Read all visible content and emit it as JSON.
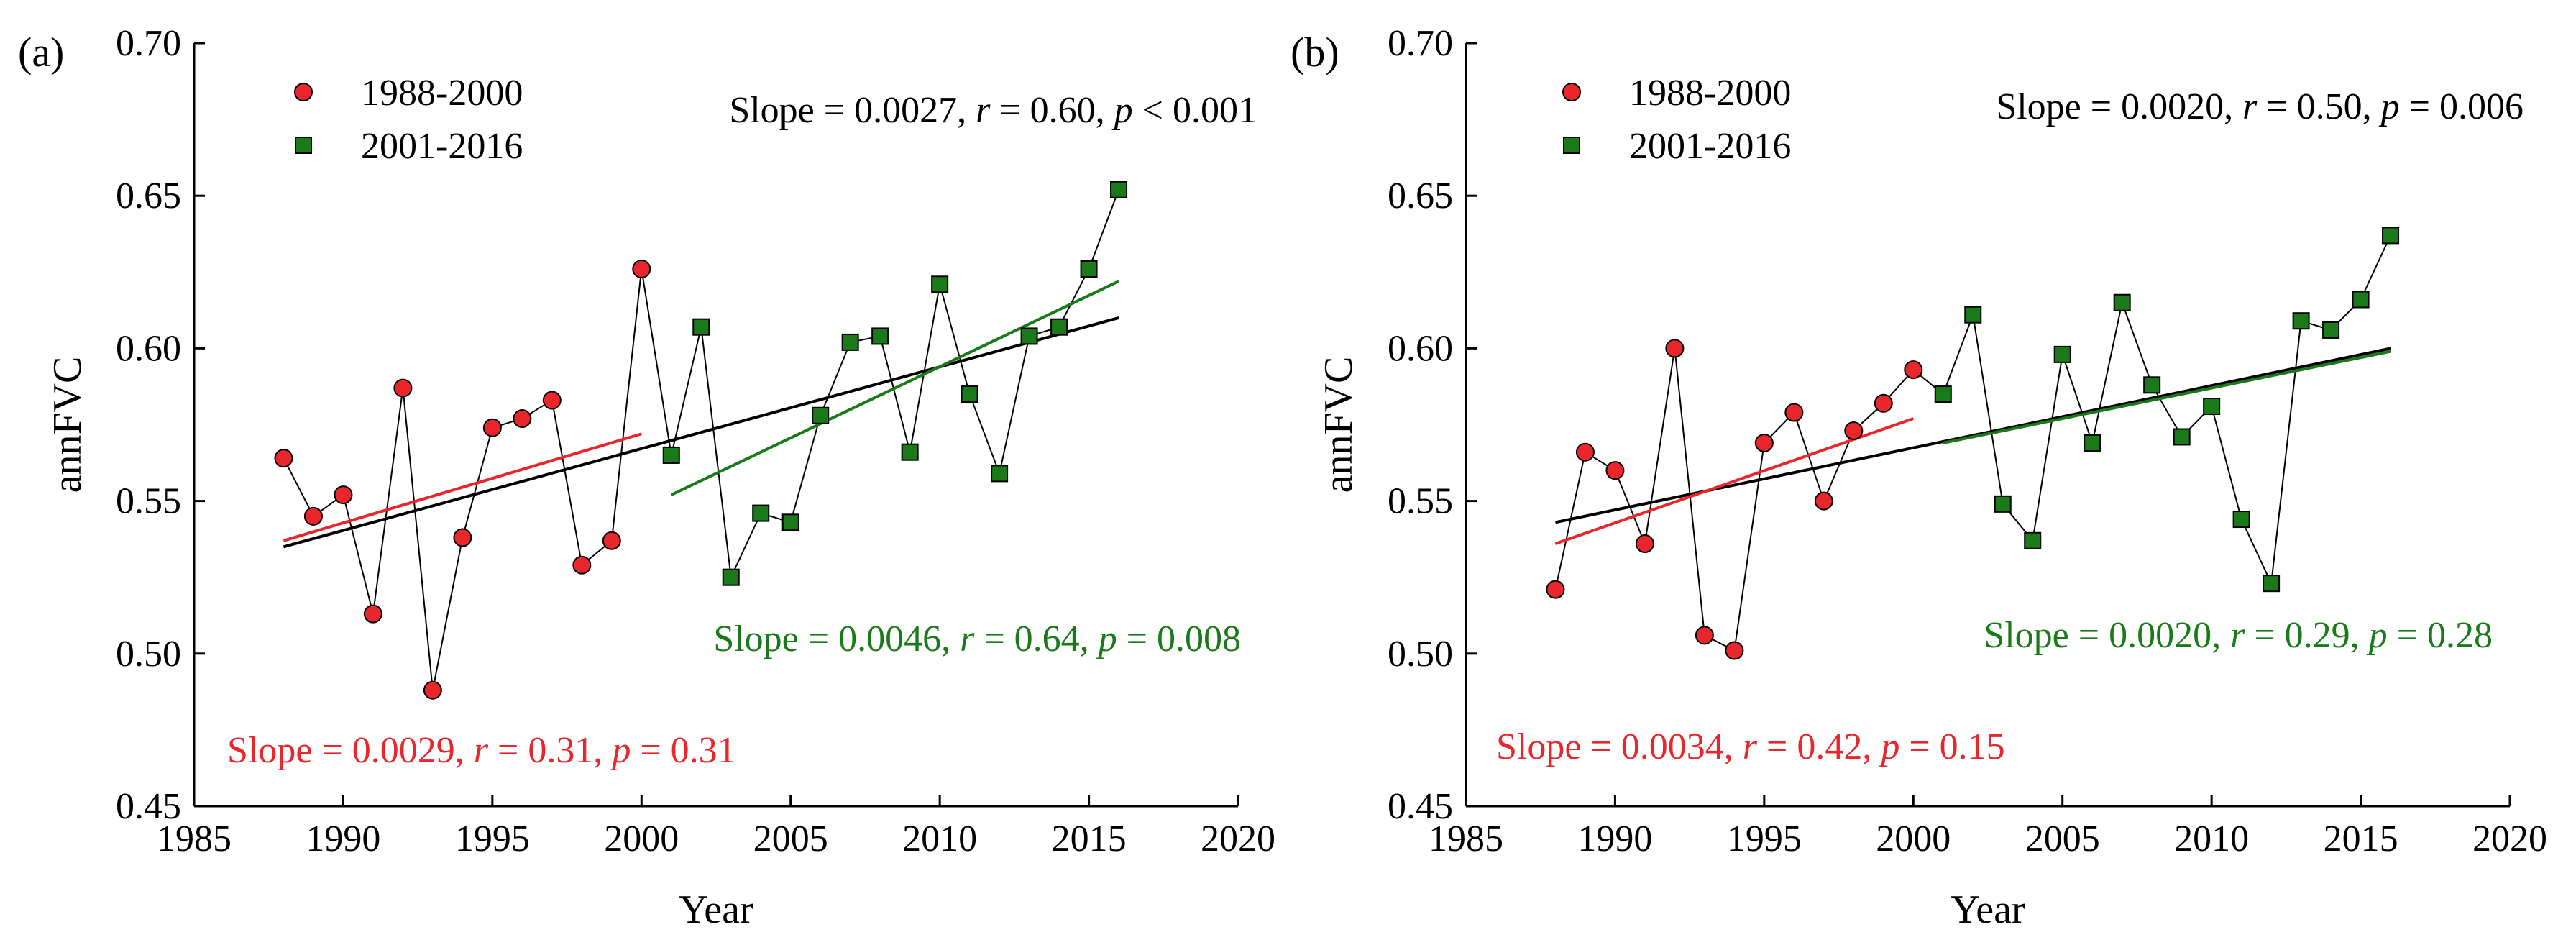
{
  "chart_data": [
    {
      "type": "scatter",
      "panel_label": "(a)",
      "xlabel": "Year",
      "ylabel": "annFVC",
      "xlim": [
        1985,
        2020
      ],
      "ylim": [
        0.45,
        0.7
      ],
      "xticks": [
        1985,
        1990,
        1995,
        2000,
        2005,
        2010,
        2015,
        2020
      ],
      "yticks": [
        0.45,
        0.5,
        0.55,
        0.6,
        0.65,
        0.7
      ],
      "grid": false,
      "legend_position": "top-left",
      "legend": [
        {
          "label": "1988-2000",
          "marker": "circle",
          "color": "#e8262b"
        },
        {
          "label": "2001-2016",
          "marker": "square",
          "color": "#1a7a1a"
        }
      ],
      "series": [
        {
          "name": "1988-2000",
          "color": "#e8262b",
          "x": [
            1988,
            1989,
            1990,
            1991,
            1992,
            1993,
            1994,
            1995,
            1996,
            1997,
            1998,
            1999,
            2000
          ],
          "values": [
            0.564,
            0.545,
            0.552,
            0.513,
            0.587,
            0.488,
            0.538,
            0.574,
            0.577,
            0.583,
            0.529,
            0.537,
            0.626
          ]
        },
        {
          "name": "2001-2016",
          "color": "#1a7a1a",
          "x": [
            2001,
            2002,
            2003,
            2004,
            2005,
            2006,
            2007,
            2008,
            2009,
            2010,
            2011,
            2012,
            2013,
            2014,
            2015,
            2016
          ],
          "values": [
            0.565,
            0.607,
            0.525,
            0.546,
            0.543,
            0.578,
            0.602,
            0.604,
            0.566,
            0.621,
            0.585,
            0.559,
            0.604,
            0.607,
            0.626,
            0.652
          ]
        }
      ],
      "trendlines": [
        {
          "name": "overall",
          "color": "#000000",
          "x": [
            1988,
            2016
          ],
          "y": [
            0.535,
            0.61
          ]
        },
        {
          "name": "1988-2000",
          "color": "#e8262b",
          "x": [
            1988,
            2000
          ],
          "y": [
            0.537,
            0.572
          ]
        },
        {
          "name": "2001-2016",
          "color": "#1a7a1a",
          "x": [
            2001,
            2016
          ],
          "y": [
            0.552,
            0.622
          ]
        }
      ],
      "annotations": [
        {
          "color": "#000000",
          "anchor": "top-right",
          "parts": [
            {
              "text": "Slope = 0.0027, ",
              "italic": false
            },
            {
              "text": "r",
              "italic": true
            },
            {
              "text": " = 0.60, ",
              "italic": false
            },
            {
              "text": "p",
              "italic": true
            },
            {
              "text": " < 0.001",
              "italic": false
            }
          ]
        },
        {
          "color": "#1a7a1a",
          "anchor": "middle-right",
          "parts": [
            {
              "text": "Slope = 0.0046, ",
              "italic": false
            },
            {
              "text": "r",
              "italic": true
            },
            {
              "text": " = 0.64, ",
              "italic": false
            },
            {
              "text": "p",
              "italic": true
            },
            {
              "text": " = 0.008",
              "italic": false
            }
          ]
        },
        {
          "color": "#e8262b",
          "anchor": "bottom-left",
          "parts": [
            {
              "text": "Slope = 0.0029, ",
              "italic": false
            },
            {
              "text": "r",
              "italic": true
            },
            {
              "text": " = 0.31, ",
              "italic": false
            },
            {
              "text": "p",
              "italic": true
            },
            {
              "text": " = 0.31",
              "italic": false
            }
          ]
        }
      ]
    },
    {
      "type": "scatter",
      "panel_label": "(b)",
      "xlabel": "Year",
      "ylabel": "annFVC",
      "xlim": [
        1985,
        2020
      ],
      "ylim": [
        0.45,
        0.7
      ],
      "xticks": [
        1985,
        1990,
        1995,
        2000,
        2005,
        2010,
        2015,
        2020
      ],
      "yticks": [
        0.45,
        0.5,
        0.55,
        0.6,
        0.65,
        0.7
      ],
      "grid": false,
      "legend_position": "top-left",
      "legend": [
        {
          "label": "1988-2000",
          "marker": "circle",
          "color": "#e8262b"
        },
        {
          "label": "2001-2016",
          "marker": "square",
          "color": "#1a7a1a"
        }
      ],
      "series": [
        {
          "name": "1988-2000",
          "color": "#e8262b",
          "x": [
            1988,
            1989,
            1990,
            1991,
            1992,
            1993,
            1994,
            1995,
            1996,
            1997,
            1998,
            1999,
            2000
          ],
          "values": [
            0.521,
            0.566,
            0.56,
            0.536,
            0.6,
            0.506,
            0.501,
            0.569,
            0.579,
            0.55,
            0.573,
            0.582,
            0.593
          ]
        },
        {
          "name": "2001-2016",
          "color": "#1a7a1a",
          "x": [
            2001,
            2002,
            2003,
            2004,
            2005,
            2006,
            2007,
            2008,
            2009,
            2010,
            2011,
            2012,
            2013,
            2014,
            2015,
            2016
          ],
          "values": [
            0.585,
            0.611,
            0.549,
            0.537,
            0.598,
            0.569,
            0.615,
            0.588,
            0.571,
            0.581,
            0.544,
            0.523,
            0.609,
            0.606,
            0.616,
            0.637
          ]
        }
      ],
      "trendlines": [
        {
          "name": "overall",
          "color": "#000000",
          "x": [
            1988,
            2016
          ],
          "y": [
            0.543,
            0.6
          ]
        },
        {
          "name": "1988-2000",
          "color": "#e8262b",
          "x": [
            1988,
            2000
          ],
          "y": [
            0.536,
            0.577
          ]
        },
        {
          "name": "2001-2016",
          "color": "#1a7a1a",
          "x": [
            2001,
            2016
          ],
          "y": [
            0.569,
            0.599
          ]
        }
      ],
      "annotations": [
        {
          "color": "#000000",
          "anchor": "top-right",
          "parts": [
            {
              "text": "Slope = 0.0020, ",
              "italic": false
            },
            {
              "text": "r",
              "italic": true
            },
            {
              "text": " = 0.50, ",
              "italic": false
            },
            {
              "text": "p",
              "italic": true
            },
            {
              "text": " = 0.006",
              "italic": false
            }
          ]
        },
        {
          "color": "#1a7a1a",
          "anchor": "middle-right",
          "parts": [
            {
              "text": "Slope = 0.0020, ",
              "italic": false
            },
            {
              "text": "r",
              "italic": true
            },
            {
              "text": " = 0.29, ",
              "italic": false
            },
            {
              "text": "p",
              "italic": true
            },
            {
              "text": " = 0.28",
              "italic": false
            }
          ]
        },
        {
          "color": "#e8262b",
          "anchor": "bottom-left",
          "parts": [
            {
              "text": "Slope = 0.0034, ",
              "italic": false
            },
            {
              "text": "r",
              "italic": true
            },
            {
              "text": " = 0.42, ",
              "italic": false
            },
            {
              "text": "p",
              "italic": true
            },
            {
              "text": " = 0.15",
              "italic": false
            }
          ]
        }
      ]
    }
  ]
}
